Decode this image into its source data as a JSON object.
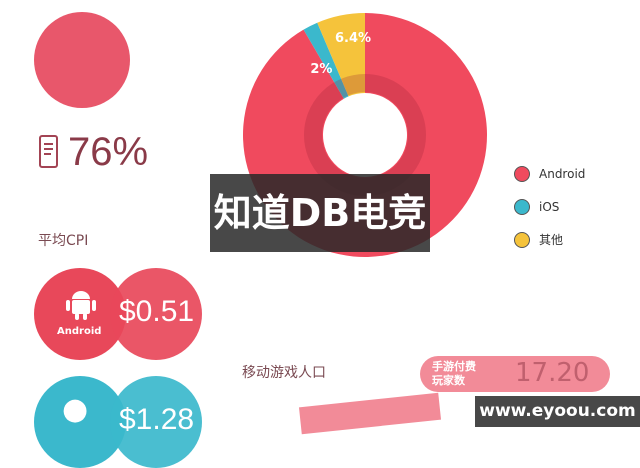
{
  "top_stat": {
    "value": "76%",
    "icon": "phone-icon"
  },
  "chart_data": {
    "type": "pie",
    "categories": [
      "Android",
      "iOS",
      "其他"
    ],
    "values": [
      91.6,
      2,
      6.4
    ],
    "data_labels": [
      "",
      "2%",
      "6.4%"
    ],
    "colors": [
      "#f04a5e",
      "#3bb8cc",
      "#f5c33b"
    ],
    "legend": "right"
  },
  "cpi": {
    "title": "平均CPI",
    "android": {
      "label": "Android",
      "value": "$0.51",
      "color": "#e8485a"
    },
    "ios": {
      "value": "$1.28",
      "color": "#3bb8cc"
    }
  },
  "entry": {
    "title": "移动游戏人口",
    "badge": "手游付费玩家数",
    "badge_value": "17.20"
  },
  "watermarks": {
    "center": "知道DB电竞",
    "corner": "www.eyoou.com"
  }
}
